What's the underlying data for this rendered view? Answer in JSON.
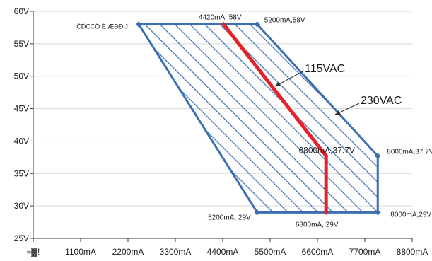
{
  "chart_data": {
    "type": "area",
    "title": "",
    "xlabel": "",
    "ylabel": "",
    "xlim": [
      0,
      8800
    ],
    "ylim": [
      25,
      60
    ],
    "x_ticks": [
      0,
      1100,
      2200,
      3300,
      4400,
      5500,
      6600,
      7700,
      8800
    ],
    "x_tick_labels": [
      "÷▓!",
      "1100mA",
      "2200mA",
      "3300mA",
      "4400mA",
      "5500mA",
      "6600mA",
      "7700mA",
      "8800mA"
    ],
    "y_ticks": [
      25,
      30,
      35,
      40,
      45,
      50,
      55,
      60
    ],
    "y_tick_labels": [
      "25V",
      "30V",
      "35V",
      "40V",
      "45V",
      "50V",
      "55V",
      "60V"
    ],
    "grid": "horizontal",
    "series": [
      {
        "name": "230VAC",
        "type": "hatched-area",
        "color": "#3b6fb0",
        "x": [
          2450,
          5200,
          8000,
          8000,
          5200
        ],
        "y": [
          58,
          58,
          37.7,
          29,
          29
        ]
      },
      {
        "name": "115VAC",
        "type": "line",
        "color": "#e8202a",
        "x": [
          4420,
          6800,
          6800
        ],
        "y": [
          58,
          37.7,
          29
        ]
      }
    ],
    "annotations": [
      {
        "text": "ČĎĆĆÖ É ÆÐĐĲ",
        "x": 2450,
        "y": 58
      },
      {
        "text": "4420mA, 58V",
        "x": 4420,
        "y": 58
      },
      {
        "text": "5200mA,58V",
        "x": 5200,
        "y": 58
      },
      {
        "text": "6800mA,37.7V",
        "x": 6800,
        "y": 37.7
      },
      {
        "text": "8000mA,37.7V",
        "x": 8000,
        "y": 37.7
      },
      {
        "text": "5200mA, 29V",
        "x": 5200,
        "y": 29
      },
      {
        "text": "6800mA, 29V",
        "x": 6800,
        "y": 29
      },
      {
        "text": "8000mA,29V",
        "x": 8000,
        "y": 29
      }
    ],
    "callouts": [
      {
        "text": "115VAC",
        "target_series": "115VAC"
      },
      {
        "text": "230VAC",
        "target_series": "230VAC"
      }
    ]
  }
}
